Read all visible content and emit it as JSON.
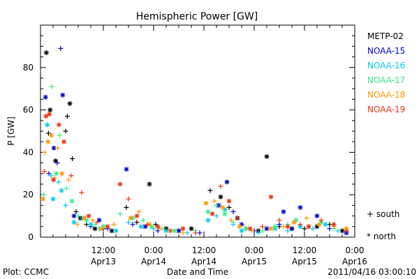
{
  "footer": {
    "plot_credit": "Plot: CCMC",
    "timestamp": "2011/04/16 03:00:10"
  },
  "legend_markers": {
    "south": "+ south",
    "north": "* north"
  },
  "chart_data": {
    "type": "scatter",
    "title": "Hemispheric Power [GW]",
    "xlabel": "Date and Time",
    "ylabel": "P [GW]",
    "ylim": [
      0,
      100
    ],
    "yticks": [
      0,
      20,
      40,
      60,
      80
    ],
    "xlim": [
      0,
      75
    ],
    "x_unit": "hours since 2011-04-12 21:00",
    "xticks": [
      {
        "x": 15,
        "line1": "12:00",
        "line2": "Apr13"
      },
      {
        "x": 27,
        "line1": "0:00",
        "line2": "Apr14"
      },
      {
        "x": 39,
        "line1": "12:00",
        "line2": "Apr14"
      },
      {
        "x": 51,
        "line1": "0:00",
        "line2": "Apr15"
      },
      {
        "x": 63,
        "line1": "12:00",
        "line2": "Apr15"
      },
      {
        "x": 75,
        "line1": "0:00",
        "line2": "Apr16"
      }
    ],
    "legend_position": "right",
    "series": [
      {
        "name": "METP-02",
        "color": "#000000",
        "points": [
          [
            1.4,
            87,
            "north"
          ],
          [
            1.9,
            49,
            "south"
          ],
          [
            2.3,
            60,
            "north"
          ],
          [
            3.6,
            36,
            "north"
          ],
          [
            6.4,
            57,
            "south"
          ],
          [
            7.0,
            63,
            "north"
          ],
          [
            7.6,
            37,
            "south"
          ],
          [
            6.0,
            50,
            "south"
          ],
          [
            8.5,
            12,
            "south"
          ],
          [
            9.5,
            9,
            "north"
          ],
          [
            11,
            6,
            "south"
          ],
          [
            13,
            4,
            "north"
          ],
          [
            15,
            4,
            "south"
          ],
          [
            17,
            3,
            "north"
          ],
          [
            20.5,
            14,
            "south"
          ],
          [
            23,
            7,
            "south"
          ],
          [
            26,
            25,
            "north"
          ],
          [
            27.5,
            6,
            "south"
          ],
          [
            30,
            4,
            "north"
          ],
          [
            33,
            3,
            "south"
          ],
          [
            36,
            4,
            "north"
          ],
          [
            40.5,
            22,
            "south"
          ],
          [
            43,
            19,
            "north"
          ],
          [
            45,
            14,
            "south"
          ],
          [
            47,
            9,
            "north"
          ],
          [
            49,
            4,
            "south"
          ],
          [
            52,
            3,
            "north"
          ],
          [
            54,
            38,
            "north"
          ],
          [
            57,
            5,
            "south"
          ],
          [
            60,
            4,
            "north"
          ],
          [
            63,
            4,
            "south"
          ],
          [
            66,
            5,
            "north"
          ],
          [
            69,
            6,
            "south"
          ],
          [
            72,
            3,
            "north"
          ]
        ]
      },
      {
        "name": "NOAA-15",
        "color": "#0000cc",
        "points": [
          [
            1.2,
            66,
            "north"
          ],
          [
            4.8,
            89,
            "south"
          ],
          [
            5.3,
            67,
            "north"
          ],
          [
            3.2,
            42,
            "north"
          ],
          [
            4.0,
            35,
            "south"
          ],
          [
            2.0,
            30,
            "south"
          ],
          [
            8,
            10,
            "north"
          ],
          [
            12,
            5,
            "south"
          ],
          [
            14,
            8,
            "north"
          ],
          [
            16,
            4,
            "south"
          ],
          [
            20.5,
            32,
            "north"
          ],
          [
            22,
            6,
            "south"
          ],
          [
            25,
            5,
            "north"
          ],
          [
            28,
            3,
            "south"
          ],
          [
            33,
            3,
            "north"
          ],
          [
            38,
            2,
            "south"
          ],
          [
            42.5,
            15,
            "north"
          ],
          [
            44.5,
            26,
            "north"
          ],
          [
            46,
            12,
            "south"
          ],
          [
            48,
            6,
            "north"
          ],
          [
            51,
            3,
            "south"
          ],
          [
            54,
            4,
            "north"
          ],
          [
            57,
            6,
            "south"
          ],
          [
            58,
            12,
            "north"
          ],
          [
            60,
            4,
            "south"
          ],
          [
            62,
            14,
            "north"
          ],
          [
            64,
            5,
            "south"
          ],
          [
            66,
            10,
            "north"
          ],
          [
            69,
            4,
            "south"
          ],
          [
            73,
            2,
            "north"
          ]
        ]
      },
      {
        "name": "NOAA-16",
        "color": "#00ccee",
        "points": [
          [
            1.6,
            53,
            "north"
          ],
          [
            2.5,
            29,
            "south"
          ],
          [
            3.0,
            18,
            "north"
          ],
          [
            4.3,
            26,
            "south"
          ],
          [
            5.0,
            22,
            "north"
          ],
          [
            6.0,
            15,
            "south"
          ],
          [
            8,
            7,
            "north"
          ],
          [
            10,
            9,
            "south"
          ],
          [
            12,
            6,
            "north"
          ],
          [
            14,
            4,
            "south"
          ],
          [
            18,
            3,
            "north"
          ],
          [
            21,
            7,
            "south"
          ],
          [
            24,
            5,
            "north"
          ],
          [
            27,
            4,
            "south"
          ],
          [
            30,
            3,
            "north"
          ],
          [
            35,
            2,
            "south"
          ],
          [
            40,
            8,
            "north"
          ],
          [
            42,
            10,
            "south"
          ],
          [
            44,
            13,
            "north"
          ],
          [
            46,
            6,
            "south"
          ],
          [
            48,
            3,
            "north"
          ],
          [
            52,
            2,
            "south"
          ],
          [
            56,
            4,
            "north"
          ],
          [
            59,
            3,
            "south"
          ],
          [
            62,
            5,
            "north"
          ],
          [
            65,
            4,
            "south"
          ],
          [
            68,
            6,
            "north"
          ],
          [
            71,
            3,
            "south"
          ]
        ]
      },
      {
        "name": "NOAA-17",
        "color": "#33ee88",
        "points": [
          [
            0.8,
            20,
            "south"
          ],
          [
            2.7,
            71,
            "south"
          ],
          [
            3.8,
            30,
            "north"
          ],
          [
            4.6,
            48,
            "south"
          ],
          [
            6.2,
            23,
            "south"
          ],
          [
            7.5,
            17,
            "north"
          ],
          [
            9,
            10,
            "south"
          ],
          [
            11,
            8,
            "north"
          ],
          [
            13,
            6,
            "south"
          ],
          [
            15,
            5,
            "north"
          ],
          [
            19,
            11,
            "south"
          ],
          [
            22,
            9,
            "north"
          ],
          [
            24.5,
            8,
            "south"
          ],
          [
            26.5,
            5,
            "north"
          ],
          [
            29,
            4,
            "south"
          ],
          [
            32,
            3,
            "north"
          ],
          [
            37,
            3,
            "south"
          ],
          [
            40,
            12,
            "north"
          ],
          [
            42,
            15,
            "south"
          ],
          [
            44,
            11,
            "north"
          ],
          [
            46,
            7,
            "south"
          ],
          [
            49,
            4,
            "north"
          ],
          [
            53,
            3,
            "south"
          ],
          [
            56,
            5,
            "north"
          ],
          [
            59,
            6,
            "south"
          ],
          [
            61,
            8,
            "north"
          ],
          [
            64,
            5,
            "south"
          ],
          [
            67,
            7,
            "north"
          ],
          [
            70,
            4,
            "south"
          ]
        ]
      },
      {
        "name": "NOAA-18",
        "color": "#ff9900",
        "points": [
          [
            0.6,
            18,
            "north"
          ],
          [
            1.0,
            40,
            "south"
          ],
          [
            1.8,
            45,
            "north"
          ],
          [
            2.6,
            48,
            "north"
          ],
          [
            3.4,
            28,
            "south"
          ],
          [
            4.1,
            42,
            "south"
          ],
          [
            5.1,
            30,
            "north"
          ],
          [
            6.7,
            27,
            "south"
          ],
          [
            8.8,
            6,
            "south"
          ],
          [
            10.5,
            9,
            "north"
          ],
          [
            12.5,
            8,
            "south"
          ],
          [
            14.5,
            4,
            "north"
          ],
          [
            17.5,
            6,
            "south"
          ],
          [
            21.5,
            9,
            "north"
          ],
          [
            23.5,
            12,
            "south"
          ],
          [
            26,
            6,
            "north"
          ],
          [
            28.5,
            4,
            "south"
          ],
          [
            31,
            3,
            "north"
          ],
          [
            34,
            2,
            "south"
          ],
          [
            39.5,
            16,
            "north"
          ],
          [
            41.5,
            17,
            "south"
          ],
          [
            43.5,
            14,
            "north"
          ],
          [
            45.5,
            8,
            "south"
          ],
          [
            47.5,
            5,
            "north"
          ],
          [
            50.5,
            3,
            "south"
          ],
          [
            55,
            4,
            "north"
          ],
          [
            58,
            5,
            "south"
          ],
          [
            60.5,
            7,
            "north"
          ],
          [
            63.5,
            9,
            "south"
          ],
          [
            66.5,
            6,
            "north"
          ],
          [
            70,
            5,
            "south"
          ],
          [
            73,
            4,
            "north"
          ]
        ]
      },
      {
        "name": "NOAA-19",
        "color": "#ee3311",
        "points": [
          [
            0.9,
            31,
            "south"
          ],
          [
            1.3,
            57,
            "north"
          ],
          [
            2.1,
            58,
            "north"
          ],
          [
            3.1,
            27,
            "north"
          ],
          [
            4.4,
            53,
            "north"
          ],
          [
            5.6,
            45,
            "north"
          ],
          [
            7.3,
            29,
            "south"
          ],
          [
            9.8,
            21,
            "south"
          ],
          [
            11.5,
            10,
            "north"
          ],
          [
            13.5,
            7,
            "south"
          ],
          [
            16,
            5,
            "north"
          ],
          [
            19,
            25,
            "north"
          ],
          [
            21,
            18,
            "south"
          ],
          [
            23,
            10,
            "north"
          ],
          [
            25.5,
            6,
            "south"
          ],
          [
            28,
            5,
            "north"
          ],
          [
            31,
            3,
            "south"
          ],
          [
            34,
            4,
            "north"
          ],
          [
            37,
            2,
            "south"
          ],
          [
            41,
            11,
            "north"
          ],
          [
            43,
            24,
            "south"
          ],
          [
            45,
            17,
            "north"
          ],
          [
            47,
            9,
            "south"
          ],
          [
            50,
            4,
            "north"
          ],
          [
            53,
            5,
            "south"
          ],
          [
            55,
            19,
            "north"
          ],
          [
            57,
            8,
            "south"
          ],
          [
            59,
            5,
            "north"
          ],
          [
            62,
            6,
            "south"
          ],
          [
            64,
            5,
            "north"
          ],
          [
            67,
            8,
            "south"
          ],
          [
            70,
            6,
            "north"
          ],
          [
            73,
            3,
            "south"
          ]
        ]
      }
    ]
  }
}
